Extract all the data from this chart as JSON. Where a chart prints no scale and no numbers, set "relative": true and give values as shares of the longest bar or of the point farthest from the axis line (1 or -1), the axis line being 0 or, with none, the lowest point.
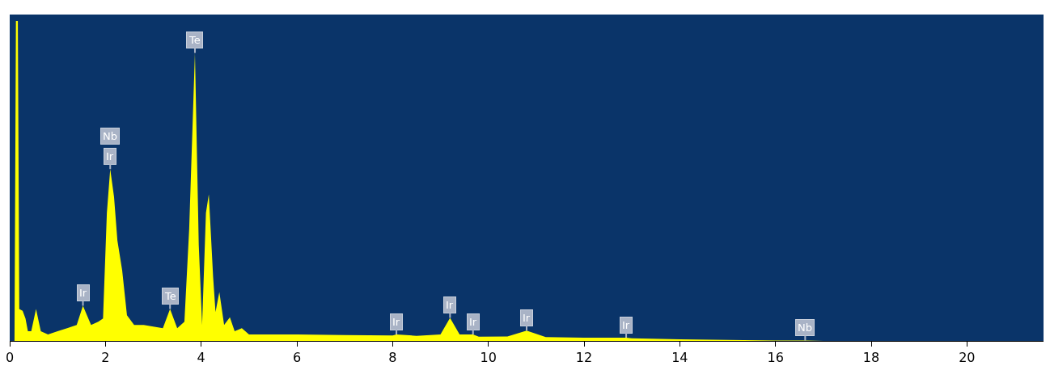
{
  "chart_data": {
    "type": "area",
    "relative": true,
    "color": "#ffff00",
    "x": [
      0,
      0.1,
      0.13,
      0.17,
      0.2,
      0.27,
      0.33,
      0.38,
      0.45,
      0.55,
      0.65,
      0.8,
      1.0,
      1.2,
      1.4,
      1.53,
      1.7,
      1.85,
      1.95,
      2.03,
      2.1,
      2.18,
      2.25,
      2.35,
      2.45,
      2.6,
      2.8,
      3.0,
      3.2,
      3.35,
      3.5,
      3.65,
      3.75,
      3.87,
      3.95,
      4.02,
      4.1,
      4.16,
      4.25,
      4.3,
      4.38,
      4.48,
      4.6,
      4.7,
      4.85,
      5.0,
      5.5,
      6,
      7,
      8,
      8.08,
      8.5,
      9.0,
      9.2,
      9.4,
      9.68,
      9.8,
      10.4,
      10.8,
      11.2,
      12,
      12.88,
      13,
      14,
      15,
      16,
      16.62,
      17,
      21.5
    ],
    "values": [
      0,
      0,
      1.0,
      1.0,
      0.1,
      0.094,
      0.07,
      0.03,
      0.03,
      0.1,
      0.03,
      0.02,
      0.03,
      0.04,
      0.05,
      0.11,
      0.05,
      0.06,
      0.07,
      0.4,
      0.537,
      0.45,
      0.314,
      0.22,
      0.08,
      0.05,
      0.05,
      0.045,
      0.04,
      0.1,
      0.04,
      0.06,
      0.35,
      0.9,
      0.3,
      0.05,
      0.4,
      0.458,
      0.2,
      0.09,
      0.153,
      0.05,
      0.074,
      0.03,
      0.04,
      0.02,
      0.02,
      0.02,
      0.018,
      0.017,
      0.02,
      0.016,
      0.02,
      0.072,
      0.02,
      0.02,
      0.013,
      0.014,
      0.032,
      0.012,
      0.01,
      0.01,
      0.008,
      0.005,
      0.003,
      0.001,
      0.001,
      0,
      0
    ],
    "xlim": [
      0,
      21.6
    ],
    "xticks": [
      0,
      2,
      4,
      6,
      8,
      10,
      12,
      14,
      16,
      18,
      20
    ],
    "annotations": [
      {
        "text": "Te",
        "x": 3.87,
        "y": 0.9
      },
      {
        "text": "Ir",
        "x": 2.1,
        "y": 0.537
      },
      {
        "text": "Nb",
        "x": 2.1,
        "y": 0.537
      },
      {
        "text": "Ir",
        "x": 1.53,
        "y": 0.11
      },
      {
        "text": "Te",
        "x": 3.35,
        "y": 0.1
      },
      {
        "text": "Ir",
        "x": 8.08,
        "y": 0.02
      },
      {
        "text": "Ir",
        "x": 9.2,
        "y": 0.072
      },
      {
        "text": "Ir",
        "x": 9.68,
        "y": 0.02
      },
      {
        "text": "Ir",
        "x": 10.8,
        "y": 0.032
      },
      {
        "text": "Ir",
        "x": 12.88,
        "y": 0.01
      },
      {
        "text": "Nb",
        "x": 16.62,
        "y": 0.001
      }
    ]
  }
}
